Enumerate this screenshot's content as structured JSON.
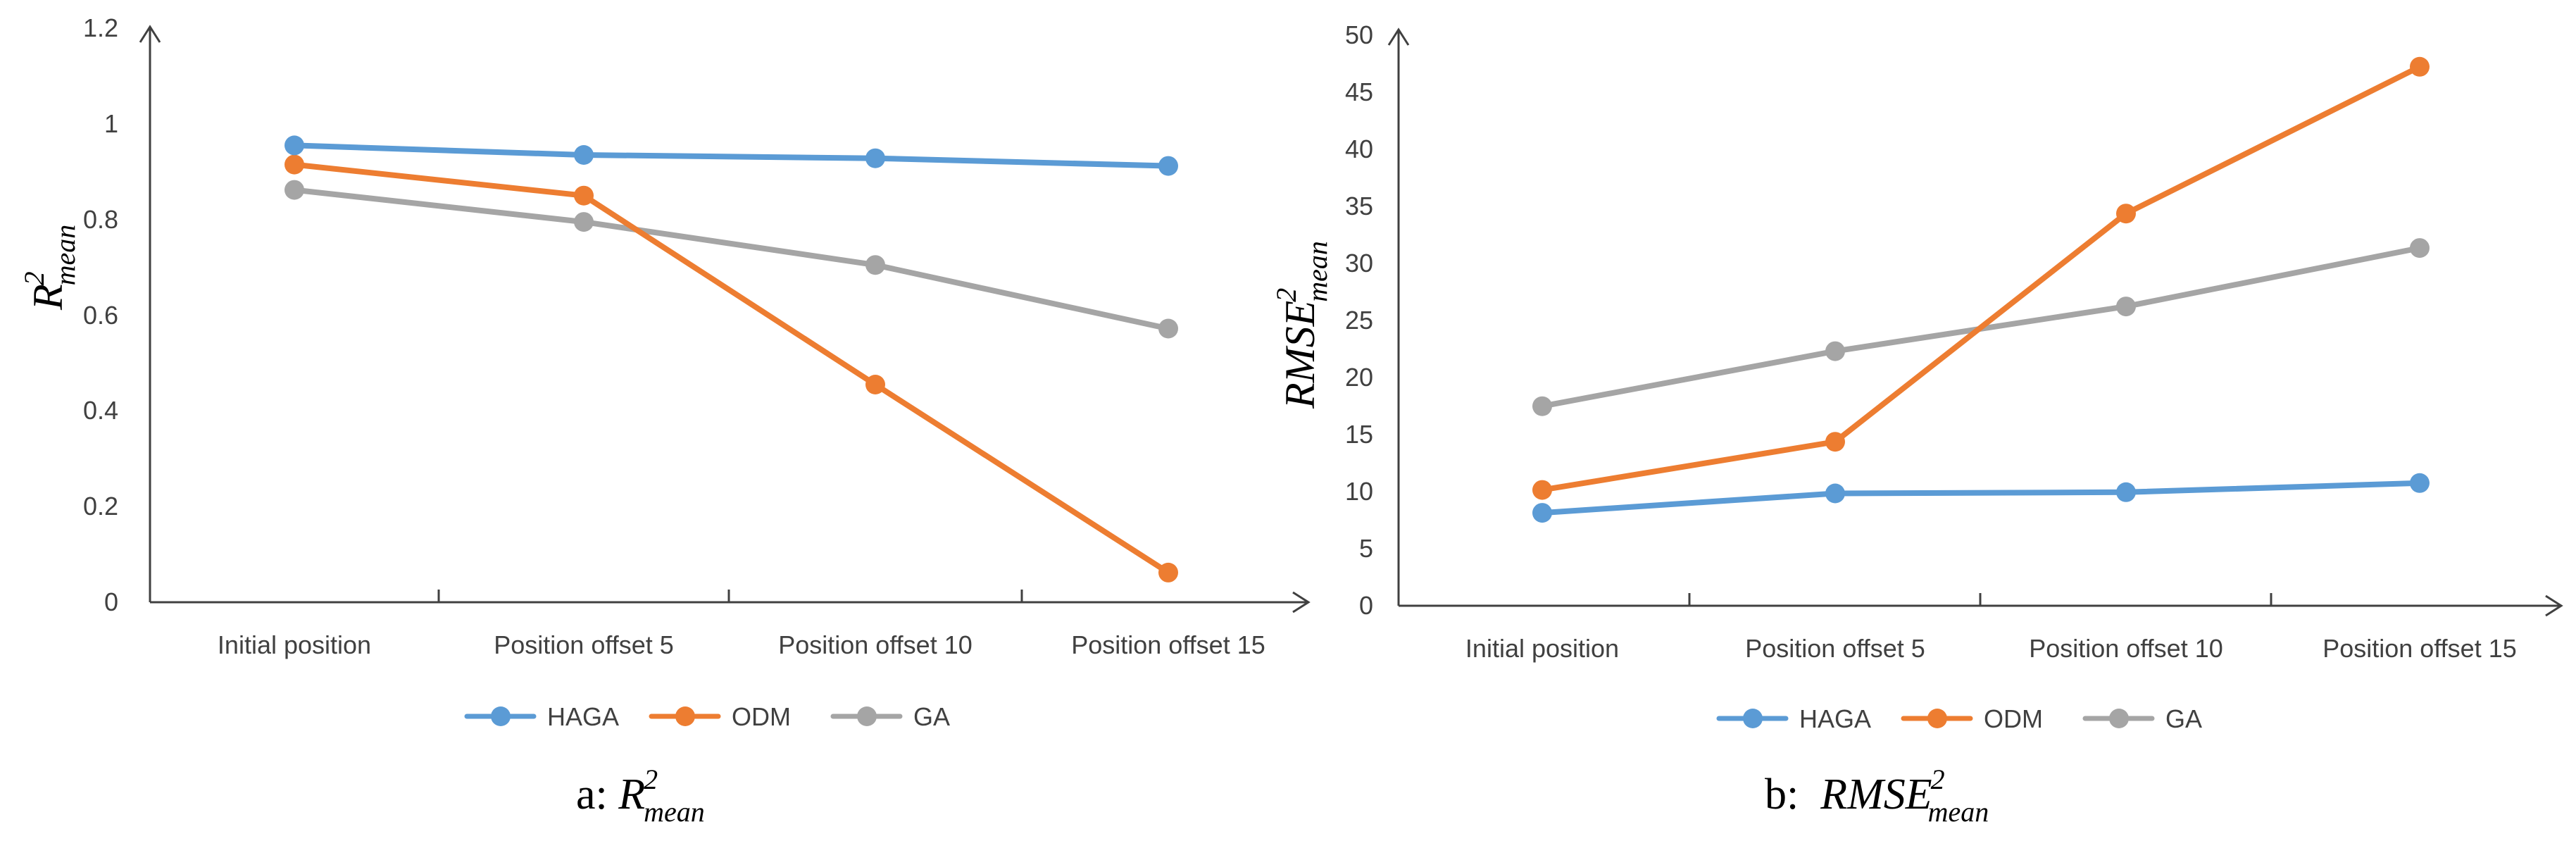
{
  "colors": {
    "HAGA": "#5B9BD5",
    "ODM": "#ED7D31",
    "GA": "#A5A5A5",
    "axis": "#404040"
  },
  "chart_data": [
    {
      "type": "line",
      "categories": [
        "Initial position",
        "Position offset 5",
        "Position offset 10",
        "Position offset 15"
      ],
      "series": [
        {
          "name": "HAGA",
          "values": [
            0.955,
            0.935,
            0.928,
            0.912
          ]
        },
        {
          "name": "ODM",
          "values": [
            0.915,
            0.85,
            0.455,
            0.062
          ]
        },
        {
          "name": "GA",
          "values": [
            0.862,
            0.795,
            0.705,
            0.572
          ]
        }
      ],
      "ylim": [
        0,
        1.2
      ],
      "yticks": [
        "0",
        "0.2",
        "0.4",
        "0.6",
        "0.8",
        "1",
        "1.2"
      ],
      "ylabel": {
        "main": "R",
        "sup": "2",
        "sub": "mean"
      },
      "caption": {
        "prefix": "a: ",
        "main": "R",
        "sup": "2",
        "sub": "mean"
      },
      "legend": [
        "HAGA",
        "ODM",
        "GA"
      ],
      "legend_position": "bottom"
    },
    {
      "type": "line",
      "categories": [
        "Initial position",
        "Position offset 5",
        "Position offset 10",
        "Position offset 15"
      ],
      "series": [
        {
          "name": "HAGA",
          "values": [
            8.1,
            9.8,
            9.9,
            10.7
          ]
        },
        {
          "name": "ODM",
          "values": [
            10.1,
            14.3,
            34.2,
            47.0
          ]
        },
        {
          "name": "GA",
          "values": [
            17.4,
            22.2,
            26.1,
            31.2
          ]
        }
      ],
      "ylim": [
        0,
        50
      ],
      "yticks": [
        "0",
        "5",
        "10",
        "15",
        "20",
        "25",
        "30",
        "35",
        "40",
        "45",
        "50"
      ],
      "ylabel": {
        "main": "RMSE",
        "sup": "2",
        "sub": "mean"
      },
      "caption": {
        "prefix": "b:  ",
        "main": "RMSE",
        "sup": "2",
        "sub": "mean"
      },
      "legend": [
        "HAGA",
        "ODM",
        "GA"
      ],
      "legend_position": "bottom"
    }
  ]
}
